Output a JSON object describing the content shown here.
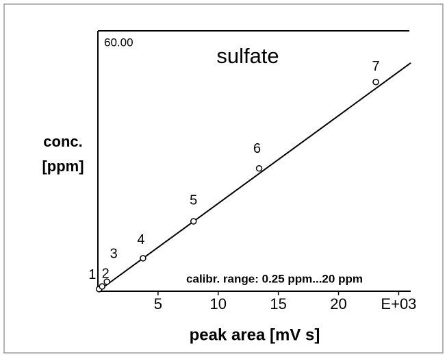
{
  "chart_data": {
    "type": "scatter",
    "title": "sulfate",
    "title_color": "#d42a20",
    "x_label": "peak area [mV s]",
    "y_label": [
      "conc.",
      "[ppm]"
    ],
    "annotation": "calibr. range: 0.25 ppm...20 ppm",
    "x": [
      0.1,
      0.35,
      0.75,
      3.75,
      7.95,
      13.4,
      23.1
    ],
    "values": [
      0.5,
      1.1,
      2.2,
      7.6,
      16.1,
      28.3,
      48.2
    ],
    "point_labels": [
      "1",
      "2",
      "3",
      "4",
      "5",
      "6",
      "7"
    ],
    "fit": {
      "x": [
        0,
        26
      ],
      "values": [
        0,
        52.6
      ]
    },
    "color": "#000000",
    "xlim": [
      0,
      26
    ],
    "ylim": [
      0,
      60
    ],
    "xticks": [
      5,
      10,
      15,
      20,
      {
        "value": 25,
        "label": "E+03"
      }
    ],
    "yticks": [
      {
        "value": 60,
        "label": "60.00"
      }
    ]
  }
}
